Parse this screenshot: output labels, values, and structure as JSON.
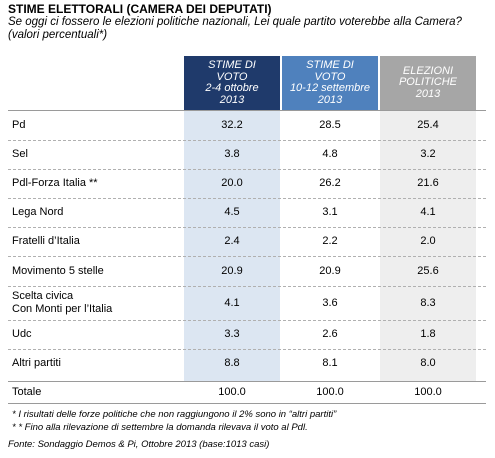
{
  "chart_data": {
    "type": "table",
    "title": "STIME ELETTORALI (CAMERA DEI DEPUTATI)",
    "subtitle": "Se oggi ci fossero le elezioni politiche nazionali, Lei quale partito voterebbe alla Camera? (valori percentuali*)",
    "columns": [
      {
        "label": "STIME DI\nVOTO\n2-4 ottobre\n2013",
        "color": "#1f3a6b",
        "bg": "#dce6f2"
      },
      {
        "label": "STIME DI\nVOTO\n10-12 settembre\n2013",
        "color": "#4f81bd",
        "bg": "#ffffff"
      },
      {
        "label": "ELEZIONI\nPOLITICHE\n2013",
        "color": "#a6a6a6",
        "bg": "#eeeeee"
      }
    ],
    "rows": [
      {
        "label": "Pd",
        "values": [
          "32.2",
          "28.5",
          "25.4"
        ]
      },
      {
        "label": "Sel",
        "values": [
          "3.8",
          "4.8",
          "3.2"
        ]
      },
      {
        "label": "Pdl-Forza Italia **",
        "values": [
          "20.0",
          "26.2",
          "21.6"
        ]
      },
      {
        "label": "Lega Nord",
        "values": [
          "4.5",
          "3.1",
          "4.1"
        ]
      },
      {
        "label": "Fratelli d’Italia",
        "values": [
          "2.4",
          "2.2",
          "2.0"
        ]
      },
      {
        "label": "Movimento 5 stelle",
        "values": [
          "20.9",
          "20.9",
          "25.6"
        ]
      },
      {
        "label": "Scelta civica\nCon Monti per l’Italia",
        "values": [
          "4.1",
          "3.6",
          "8.3"
        ]
      },
      {
        "label": "Udc",
        "values": [
          "3.3",
          "2.6",
          "1.8"
        ]
      },
      {
        "label": "Altri partiti",
        "values": [
          "8.8",
          "8.1",
          "8.0"
        ]
      }
    ],
    "total": {
      "label": "Totale",
      "values": [
        "100.0",
        "100.0",
        "100.0"
      ]
    }
  },
  "footnotes": [
    "* I risultati delle forze politiche che non raggiungono il 2% sono in “altri partiti”",
    "* * Fino alla rilevazione di settembre la domanda rilevava il voto al Pdl."
  ],
  "source": "Fonte: Sondaggio Demos & Pi, Ottobre 2013 (base:1013 casi)"
}
